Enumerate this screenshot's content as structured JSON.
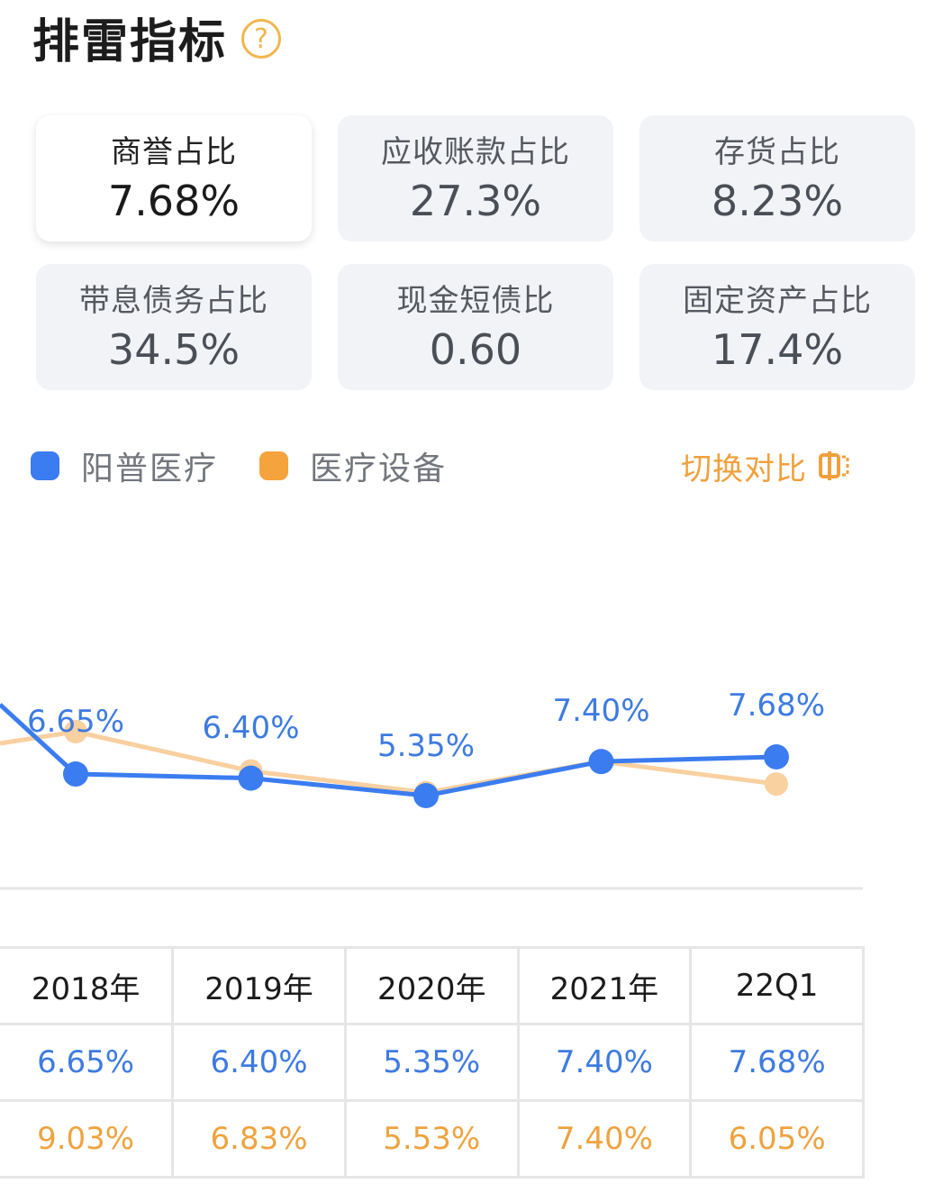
{
  "header": {
    "title": "排雷指标",
    "help_icon": "?"
  },
  "cards": [
    {
      "label": "商誉占比",
      "value": "7.68%",
      "active": true
    },
    {
      "label": "应收账款占比",
      "value": "27.3%",
      "active": false
    },
    {
      "label": "存货占比",
      "value": "8.23%",
      "active": false
    },
    {
      "label": "带息债务占比",
      "value": "34.5%",
      "active": false
    },
    {
      "label": "现金短债比",
      "value": "0.60",
      "active": false
    },
    {
      "label": "固定资产占比",
      "value": "17.4%",
      "active": false
    }
  ],
  "legend": {
    "items": [
      {
        "label": "阳普医疗",
        "color": "#3b7cf0"
      },
      {
        "label": "医疗设备",
        "color": "#f5a33c"
      }
    ],
    "switch_label": "切换对比"
  },
  "chart_data": {
    "type": "line",
    "categories": [
      "2018年",
      "2019年",
      "2020年",
      "2021年",
      "22Q1"
    ],
    "series": [
      {
        "name": "阳普医疗",
        "color": "#3b7cf0",
        "values": [
          6.65,
          6.4,
          5.35,
          7.4,
          7.68
        ],
        "labels": [
          "6.65%",
          "6.40%",
          "5.35%",
          "7.40%",
          "7.68%"
        ]
      },
      {
        "name": "医疗设备",
        "color": "#f9d0a0",
        "values": [
          9.03,
          6.83,
          5.53,
          7.4,
          6.05
        ]
      }
    ]
  },
  "table": {
    "headers": [
      "2018年",
      "2019年",
      "2020年",
      "2021年",
      "22Q1"
    ],
    "rows": [
      [
        "6.65%",
        "6.40%",
        "5.35%",
        "7.40%",
        "7.68%"
      ],
      [
        "9.03%",
        "6.83%",
        "5.53%",
        "7.40%",
        "6.05%"
      ]
    ]
  }
}
